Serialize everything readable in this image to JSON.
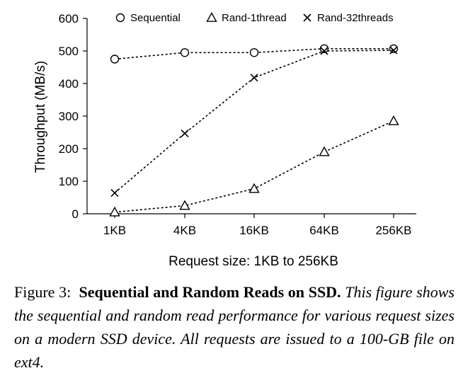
{
  "chart_data": {
    "type": "line",
    "xlabel": "Request size: 1KB to 256KB",
    "ylabel": "Throughput (MB/s)",
    "categories": [
      "1KB",
      "4KB",
      "16KB",
      "64KB",
      "256KB"
    ],
    "ylim": [
      0,
      600
    ],
    "yticks": [
      0,
      100,
      200,
      300,
      400,
      500,
      600
    ],
    "grid": false,
    "legend_position": "top",
    "series": [
      {
        "name": "Sequential",
        "marker": "circle",
        "values": [
          475,
          495,
          495,
          507,
          507
        ]
      },
      {
        "name": "Rand-1thread",
        "marker": "triangle",
        "values": [
          5,
          25,
          77,
          190,
          285
        ]
      },
      {
        "name": "Rand-32threads",
        "marker": "cross",
        "values": [
          64,
          247,
          418,
          500,
          502
        ]
      }
    ]
  },
  "caption": {
    "label": "Figure 3:",
    "title": "Sequential and Random Reads on SSD.",
    "body": "This figure shows the sequential and random read performance for various request sizes on a modern SSD device. All requests are issued to a 100-GB file on ext4."
  }
}
